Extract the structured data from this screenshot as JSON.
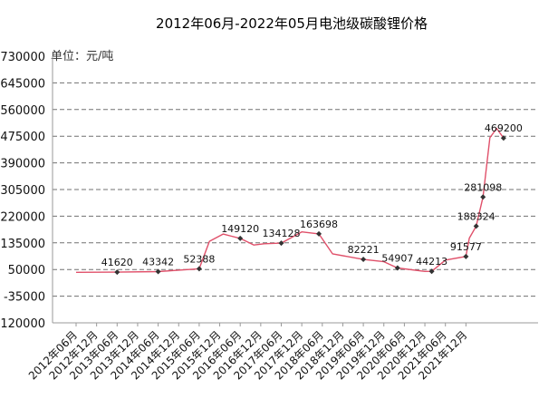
{
  "chart_data": {
    "type": "line",
    "title": "2012年06月-2022年05月电池级碳酸锂价格",
    "unit_label": "单位：元/吨",
    "ylim": [
      -120000,
      730000
    ],
    "y_ticks": [
      730000,
      645000,
      560000,
      475000,
      390000,
      305000,
      220000,
      135000,
      50000,
      -35000,
      -120000
    ],
    "y_tick_labels": [
      "730000",
      "645000",
      "560000",
      "475000",
      "390000",
      "305000",
      "220000",
      "135000",
      "50000",
      "-35000",
      "-120000"
    ],
    "x_ticks": [
      "2012年06月",
      "2012年12月",
      "2013年06月",
      "2013年12月",
      "2014年06月",
      "2014年12月",
      "2015年06月",
      "2015年12月",
      "2016年06月",
      "2016年12月",
      "2017年06月",
      "2017年12月",
      "2018年06月",
      "2018年12月",
      "2019年06月",
      "2019年12月",
      "2020年06月",
      "2020年12月",
      "2021年06月",
      "2021年12月"
    ],
    "grid": true,
    "line_color": "#e0506a",
    "series": [
      {
        "values": [
          {
            "x": "2012-06",
            "y": 41000
          },
          {
            "x": "2013-06",
            "y": 41620
          },
          {
            "x": "2014-06",
            "y": 43342
          },
          {
            "x": "2014-12",
            "y": 48000
          },
          {
            "x": "2015-06",
            "y": 52388
          },
          {
            "x": "2015-09",
            "y": 140000
          },
          {
            "x": "2016-01",
            "y": 163000
          },
          {
            "x": "2016-06",
            "y": 149120
          },
          {
            "x": "2016-10",
            "y": 128000
          },
          {
            "x": "2017-01",
            "y": 132000
          },
          {
            "x": "2017-06",
            "y": 134128
          },
          {
            "x": "2017-12",
            "y": 170000
          },
          {
            "x": "2018-05",
            "y": 163698
          },
          {
            "x": "2018-09",
            "y": 100000
          },
          {
            "x": "2019-06",
            "y": 82221
          },
          {
            "x": "2019-12",
            "y": 75000
          },
          {
            "x": "2020-04",
            "y": 54907
          },
          {
            "x": "2020-12",
            "y": 44000
          },
          {
            "x": "2021-02",
            "y": 44213
          },
          {
            "x": "2021-06",
            "y": 80000
          },
          {
            "x": "2021-12",
            "y": 91577
          },
          {
            "x": "2022-01",
            "y": 150000
          },
          {
            "x": "2022-03",
            "y": 188324
          },
          {
            "x": "2022-05",
            "y": 281098
          },
          {
            "x": "2022-07",
            "y": 470000
          },
          {
            "x": "2022-09",
            "y": 500000
          },
          {
            "x": "2022-11",
            "y": 469200
          }
        ]
      }
    ],
    "data_labels": [
      {
        "x": "2013-06",
        "y": 41620,
        "text": "41620"
      },
      {
        "x": "2014-06",
        "y": 43342,
        "text": "43342"
      },
      {
        "x": "2015-06",
        "y": 52388,
        "text": "52388"
      },
      {
        "x": "2016-06",
        "y": 149120,
        "text": "149120"
      },
      {
        "x": "2017-06",
        "y": 134128,
        "text": "134128"
      },
      {
        "x": "2018-05",
        "y": 163698,
        "text": "163698"
      },
      {
        "x": "2019-06",
        "y": 82221,
        "text": "82221"
      },
      {
        "x": "2020-04",
        "y": 54907,
        "text": "54907"
      },
      {
        "x": "2021-02",
        "y": 44213,
        "text": "44213"
      },
      {
        "x": "2021-12",
        "y": 91577,
        "text": "91577"
      },
      {
        "x": "2022-03",
        "y": 188324,
        "text": "188324"
      },
      {
        "x": "2022-05",
        "y": 281098,
        "text": "281098"
      },
      {
        "x": "2022-11",
        "y": 469200,
        "text": "469200"
      }
    ]
  }
}
